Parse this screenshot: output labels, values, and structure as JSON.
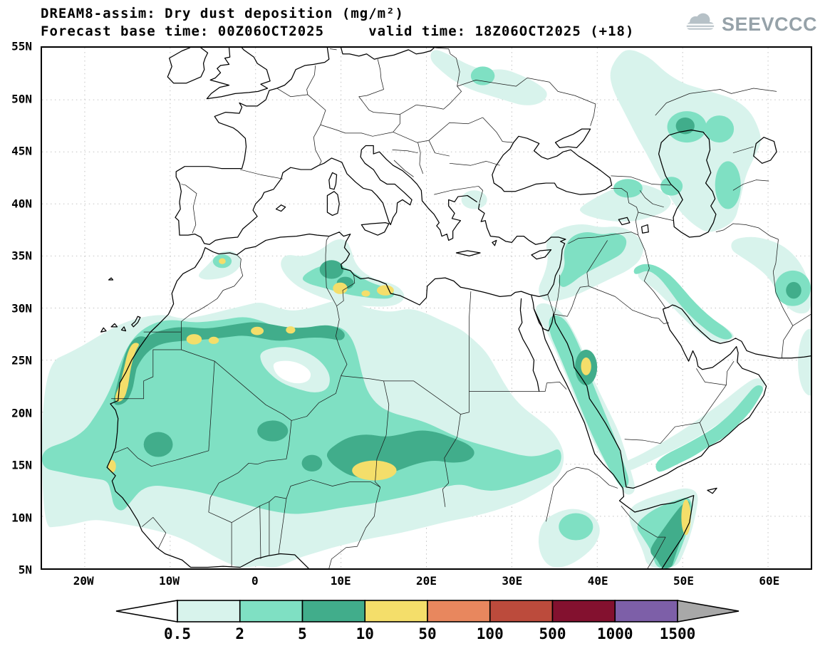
{
  "header": {
    "title_line1": "DREAM8-assim: Dry dust deposition (mg/m²)",
    "title_line2": "Forecast base time: 00Z06OCT2025     valid time: 18Z06OCT2025 (+18)"
  },
  "branding": {
    "logo_text": "SEEVCCC"
  },
  "map": {
    "lat_ticks": [
      {
        "value": 55,
        "label": "55N"
      },
      {
        "value": 50,
        "label": "50N"
      },
      {
        "value": 45,
        "label": "45N"
      },
      {
        "value": 40,
        "label": "40N"
      },
      {
        "value": 35,
        "label": "35N"
      },
      {
        "value": 30,
        "label": "30N"
      },
      {
        "value": 25,
        "label": "25N"
      },
      {
        "value": 20,
        "label": "20N"
      },
      {
        "value": 15,
        "label": "15N"
      },
      {
        "value": 10,
        "label": "10N"
      },
      {
        "value": 5,
        "label": "5N"
      }
    ],
    "lon_ticks": [
      {
        "value": -20,
        "label": "20W"
      },
      {
        "value": -10,
        "label": "10W"
      },
      {
        "value": 0,
        "label": "0"
      },
      {
        "value": 10,
        "label": "10E"
      },
      {
        "value": 20,
        "label": "20E"
      },
      {
        "value": 30,
        "label": "30E"
      },
      {
        "value": 40,
        "label": "40E"
      },
      {
        "value": 50,
        "label": "50E"
      },
      {
        "value": 60,
        "label": "60E"
      }
    ],
    "lon_range": [
      -25,
      65
    ],
    "lat_range": [
      5,
      55
    ]
  },
  "colorbar": {
    "levels": [
      "0.5",
      "2",
      "5",
      "10",
      "50",
      "100",
      "500",
      "1000",
      "1500"
    ],
    "colors": [
      "#ffffff",
      "#d8f3ec",
      "#7fe0c3",
      "#41ad8b",
      "#f4de6a",
      "#e8875e",
      "#bc4b3c",
      "#83112f",
      "#7d5fa8",
      "#a8a8a8"
    ]
  },
  "chart_data": {
    "type": "heatmap",
    "title": "DREAM8-assim: Dry dust deposition (mg/m²)",
    "forecast_base_time": "00Z06OCT2025",
    "valid_time": "18Z06OCT2025 (+18)",
    "units": "mg/m²",
    "contour_levels": [
      0.5,
      2,
      5,
      10,
      50,
      100,
      500,
      1000,
      1500
    ],
    "lon_extent": [
      -25,
      65
    ],
    "lat_extent": [
      5,
      55
    ],
    "legend_position": "bottom"
  }
}
